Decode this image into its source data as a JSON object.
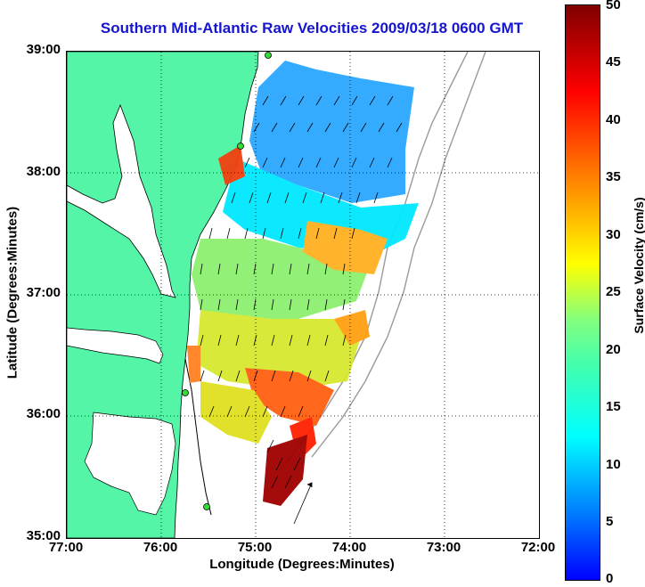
{
  "title": "Southern Mid-Atlantic Raw Velocities 2009/03/18 0600 GMT",
  "xlabel": "Longitude (Degrees:Minutes)",
  "ylabel": "Latitude (Degrees:Minutes)",
  "x_ticks": [
    "77:00",
    "76:00",
    "75:00",
    "74:00",
    "73:00",
    "72:00"
  ],
  "y_ticks": [
    "39:00",
    "38:00",
    "37:00",
    "36:00",
    "35:00"
  ],
  "colorbar": {
    "label": "Surface Velocity (cm/s)",
    "ticks": [
      "50",
      "45",
      "40",
      "35",
      "30",
      "25",
      "20",
      "15",
      "10",
      "5",
      "0"
    ],
    "range": [
      0,
      50
    ],
    "colors": [
      "#0000ff",
      "#00ffff",
      "#ffff00",
      "#ff0000",
      "#800000"
    ]
  },
  "map": {
    "land_color": "#55f5a8",
    "water_color": "#ffffff",
    "grid": "dotted",
    "lon_range": [
      -77,
      -72
    ],
    "lat_range": [
      35,
      39
    ]
  }
}
